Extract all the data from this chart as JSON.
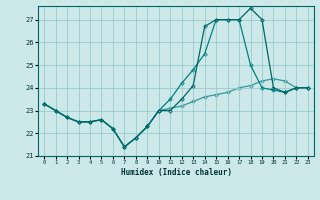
{
  "xlabel": "Humidex (Indice chaleur)",
  "bg_color": "#cce8e8",
  "grid_color": "#99cccc",
  "line_color1": "#006666",
  "line_color2": "#008080",
  "line_color3": "#339999",
  "xlim": [
    -0.5,
    23.5
  ],
  "ylim": [
    21.0,
    27.6
  ],
  "yticks": [
    21,
    22,
    23,
    24,
    25,
    26,
    27
  ],
  "xticks": [
    0,
    1,
    2,
    3,
    4,
    5,
    6,
    7,
    8,
    9,
    10,
    11,
    12,
    13,
    14,
    15,
    16,
    17,
    18,
    19,
    20,
    21,
    22,
    23
  ],
  "series1_x": [
    0,
    1,
    2,
    3,
    4,
    5,
    6,
    7,
    8,
    9,
    10,
    11,
    12,
    13,
    14,
    15,
    16,
    17,
    18,
    19,
    20,
    21,
    22,
    23
  ],
  "series1_y": [
    23.3,
    23.0,
    22.7,
    22.5,
    22.5,
    22.6,
    22.2,
    21.4,
    21.8,
    22.3,
    23.0,
    23.0,
    23.5,
    24.1,
    26.7,
    27.0,
    27.0,
    27.0,
    27.5,
    27.0,
    24.0,
    23.8,
    24.0,
    24.0
  ],
  "series2_x": [
    0,
    1,
    2,
    3,
    4,
    5,
    6,
    7,
    8,
    9,
    10,
    11,
    12,
    13,
    14,
    15,
    16,
    17,
    18,
    19,
    20,
    21,
    22,
    23
  ],
  "series2_y": [
    23.3,
    23.0,
    22.7,
    22.5,
    22.5,
    22.6,
    22.2,
    21.4,
    21.8,
    22.3,
    23.0,
    23.5,
    24.2,
    24.8,
    25.5,
    27.0,
    27.0,
    27.0,
    25.0,
    24.0,
    23.9,
    23.8,
    24.0,
    24.0
  ],
  "series3_x": [
    0,
    1,
    2,
    3,
    4,
    5,
    6,
    7,
    8,
    9,
    10,
    11,
    12,
    13,
    14,
    15,
    16,
    17,
    18,
    19,
    20,
    21,
    22,
    23
  ],
  "series3_y": [
    23.3,
    23.0,
    22.7,
    22.5,
    22.5,
    22.6,
    22.2,
    21.4,
    21.8,
    22.3,
    23.0,
    23.1,
    23.2,
    23.4,
    23.6,
    23.7,
    23.8,
    24.0,
    24.1,
    24.3,
    24.4,
    24.3,
    24.0,
    24.0
  ]
}
